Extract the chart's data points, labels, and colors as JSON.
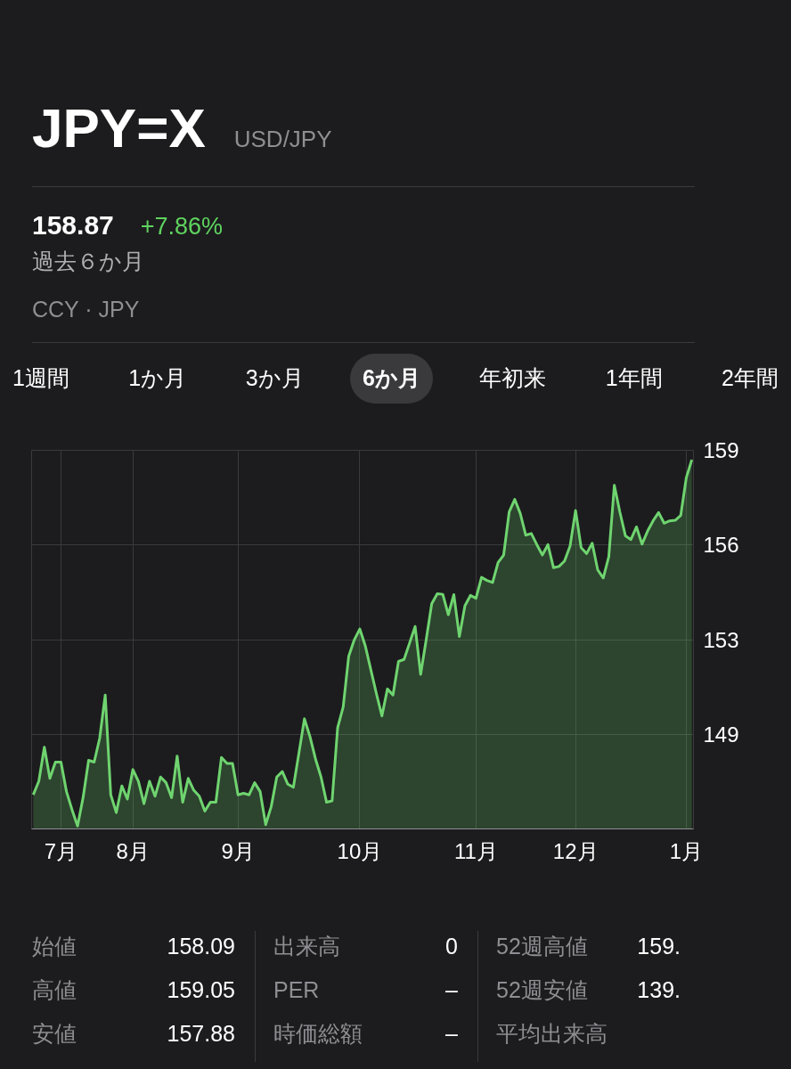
{
  "chart_data": {
    "type": "area",
    "title": "JPY=X",
    "subtitle": "USD/JPY",
    "annotations": [
      "158.87",
      "+7.86%",
      "過去６か月",
      "CCY · JPY",
      "1週間",
      "1か月",
      "3か月",
      "6か月",
      "年初来",
      "1年間",
      "2年間",
      "始値",
      "158.09",
      "高値",
      "159.05",
      "安値",
      "157.88",
      "出来高",
      "0",
      "PER",
      "–",
      "時価総額",
      "–",
      "52週高値",
      "159.",
      "52週安値",
      "139.",
      "平均出来高"
    ],
    "categories": [
      null,
      null,
      null,
      null,
      null,
      "7月",
      null,
      null,
      null,
      null,
      null,
      null,
      null,
      null,
      null,
      null,
      null,
      null,
      "8月",
      null,
      null,
      null,
      null,
      null,
      null,
      null,
      null,
      null,
      null,
      null,
      null,
      null,
      null,
      null,
      null,
      null,
      null,
      "9月",
      null,
      null,
      null,
      null,
      null,
      null,
      null,
      null,
      null,
      null,
      null,
      null,
      null,
      null,
      null,
      null,
      null,
      null,
      null,
      null,
      null,
      "10月",
      null,
      null,
      null,
      null,
      null,
      null,
      null,
      null,
      null,
      null,
      null,
      null,
      null,
      null,
      null,
      null,
      null,
      null,
      null,
      null,
      "11月",
      null,
      null,
      null,
      null,
      null,
      null,
      null,
      null,
      null,
      null,
      null,
      null,
      null,
      null,
      null,
      null,
      null,
      "12月",
      null,
      null,
      null,
      null,
      null,
      null,
      null,
      null,
      null,
      null,
      null,
      null,
      null,
      null,
      null,
      null,
      null,
      null,
      null,
      "1月",
      null
    ],
    "values": [
      147.19,
      147.66,
      148.85,
      147.76,
      148.33,
      148.33,
      147.3,
      146.67,
      146.1,
      147.09,
      148.39,
      148.33,
      149.16,
      150.67,
      147.19,
      146.57,
      147.5,
      147.04,
      148.07,
      147.66,
      146.88,
      147.66,
      147.14,
      147.81,
      147.61,
      147.09,
      148.54,
      146.93,
      147.76,
      147.35,
      147.14,
      146.62,
      146.93,
      146.93,
      148.49,
      148.28,
      148.28,
      147.19,
      147.24,
      147.19,
      147.61,
      147.3,
      146.15,
      146.78,
      147.81,
      148.0,
      147.56,
      147.45,
      148.64,
      149.84,
      149.22,
      148.44,
      147.81,
      146.93,
      146.98,
      149.53,
      150.25,
      152.02,
      152.59,
      152.97,
      152.38,
      151.55,
      150.72,
      149.94,
      150.88,
      150.67,
      151.84,
      151.91,
      152.48,
      153.06,
      151.39,
      152.59,
      153.85,
      154.2,
      154.18,
      153.47,
      154.17,
      152.71,
      153.78,
      154.14,
      154.04,
      154.77,
      154.66,
      154.59,
      155.29,
      155.55,
      157.05,
      157.49,
      157.0,
      156.24,
      156.3,
      155.91,
      155.55,
      155.91,
      155.11,
      155.15,
      155.34,
      155.86,
      157.1,
      155.81,
      155.6,
      155.96,
      155.03,
      154.75,
      155.49,
      157.98,
      157.05,
      156.22,
      156.09,
      156.53,
      155.93,
      156.38,
      156.74,
      157.03,
      156.66,
      156.74,
      156.76,
      156.93,
      158.24,
      158.87
    ],
    "color": "#6fd46f",
    "ylim": [
      146.0,
      159.2
    ],
    "yticks": [
      {
        "value": 149.3,
        "label": "149"
      },
      {
        "value": 152.6,
        "label": "153"
      },
      {
        "value": 155.9,
        "label": "156"
      },
      {
        "value": 159.2,
        "label": "159"
      }
    ],
    "grid": true
  }
}
